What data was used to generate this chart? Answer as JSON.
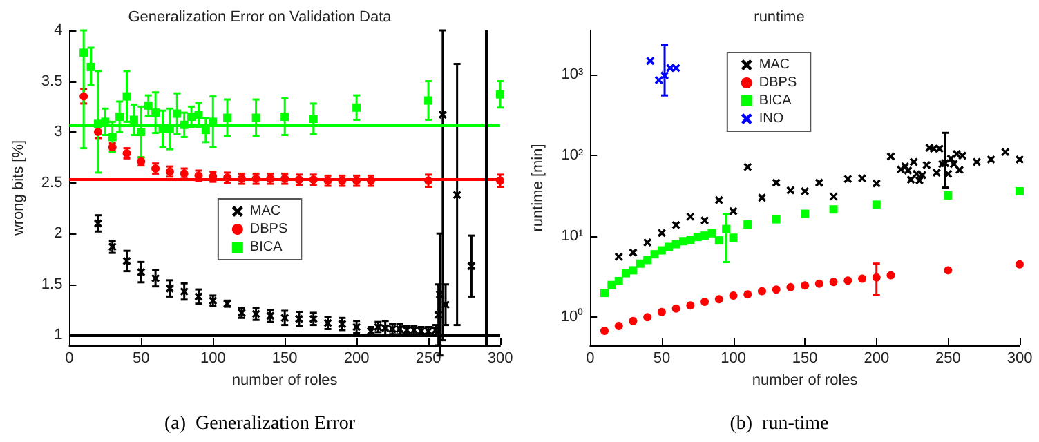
{
  "chart_data": [
    {
      "type": "scatter",
      "title": "Generalization Error on Validation Data",
      "xlabel": "number of roles",
      "ylabel": "wrong bits [%]",
      "annotations": [
        "(a)  Generalization Error"
      ],
      "xlim": [
        0,
        300
      ],
      "xticks": [
        0,
        50,
        100,
        150,
        200,
        250,
        300
      ],
      "ylim": [
        0.9,
        4
      ],
      "yticks": [
        1,
        1.5,
        2,
        2.5,
        3,
        3.5,
        4
      ],
      "grid": false,
      "legend": "center",
      "series": [
        {
          "name": "MAC",
          "color": "#000000",
          "marker": "cross",
          "x": [
            20,
            30,
            40,
            50,
            60,
            70,
            80,
            90,
            100,
            110,
            120,
            130,
            140,
            150,
            160,
            170,
            180,
            190,
            200,
            210,
            215,
            220,
            225,
            230,
            235,
            240,
            245,
            250,
            255,
            257,
            258,
            260,
            262,
            270,
            280
          ],
          "values": [
            2.1,
            1.87,
            1.73,
            1.62,
            1.56,
            1.46,
            1.43,
            1.38,
            1.34,
            1.31,
            1.22,
            1.21,
            1.19,
            1.17,
            1.16,
            1.16,
            1.12,
            1.11,
            1.08,
            1.04,
            1.08,
            1.07,
            1.06,
            1.06,
            1.05,
            1.05,
            1.04,
            1.04,
            1.05,
            1.2,
            1.4,
            3.17,
            1.3,
            2.38,
            1.68
          ],
          "errors": [
            0.08,
            0.06,
            0.1,
            0.1,
            0.08,
            0.08,
            0.08,
            0.07,
            0.05,
            0.03,
            0.05,
            0.06,
            0.06,
            0.07,
            0.07,
            0.06,
            0.06,
            0.06,
            0.06,
            0.04,
            0.05,
            0.07,
            0.05,
            0.05,
            0.04,
            0.04,
            0.04,
            0.04,
            0.05,
            0.3,
            0.6,
            [
              0.95,
              4
            ],
            0.2,
            [
              1.1,
              3.67
            ],
            0.3
          ]
        },
        {
          "name": "DBPS",
          "color": "#ff0000",
          "marker": "circle",
          "x": [
            10,
            20,
            30,
            40,
            50,
            60,
            70,
            80,
            90,
            100,
            110,
            120,
            130,
            140,
            150,
            160,
            170,
            180,
            190,
            200,
            210,
            250,
            300
          ],
          "values": [
            3.35,
            3.0,
            2.85,
            2.79,
            2.71,
            2.64,
            2.61,
            2.59,
            2.57,
            2.56,
            2.55,
            2.54,
            2.54,
            2.54,
            2.54,
            2.53,
            2.53,
            2.52,
            2.52,
            2.52,
            2.52,
            2.52,
            2.52
          ],
          "errors": [
            0.07,
            0.06,
            0.04,
            0.05,
            0.04,
            0.05,
            0.05,
            0.05,
            0.05,
            0.05,
            0.05,
            0.05,
            0.05,
            0.05,
            0.05,
            0.05,
            0.05,
            0.05,
            0.05,
            0.05,
            0.05,
            0.06,
            0.06
          ]
        },
        {
          "name": "BICA",
          "color": "#00ff00",
          "marker": "square",
          "x": [
            10,
            15,
            20,
            25,
            30,
            35,
            40,
            45,
            50,
            55,
            60,
            65,
            70,
            75,
            80,
            85,
            90,
            95,
            100,
            110,
            130,
            150,
            170,
            200,
            250,
            300
          ],
          "values": [
            3.78,
            3.64,
            3.08,
            3.1,
            2.95,
            3.15,
            3.35,
            3.12,
            3.0,
            3.26,
            3.19,
            3.03,
            3.03,
            3.18,
            3.07,
            3.15,
            3.17,
            3.02,
            3.1,
            3.14,
            3.14,
            3.15,
            3.13,
            3.24,
            3.31,
            3.37
          ],
          "errors": [
            [
              2.84,
              4
            ],
            [
              3.46,
              3.83
            ],
            [
              2.6,
              3.6
            ],
            0.13,
            0.15,
            0.15,
            0.25,
            0.15,
            0.25,
            0.1,
            0.2,
            0.18,
            0.2,
            0.2,
            0.12,
            0.1,
            0.12,
            0.12,
            0.25,
            0.18,
            0.18,
            0.18,
            0.15,
            0.12,
            0.19,
            0.13
          ]
        }
      ],
      "ref_lines": [
        {
          "axis": "y",
          "value": 1,
          "color": "#000000"
        },
        {
          "axis": "y",
          "value": 2.54,
          "color": "#ff0000"
        },
        {
          "axis": "y",
          "value": 3.06,
          "color": "#00ff00"
        },
        {
          "axis": "x",
          "value": 290,
          "color": "#000000"
        }
      ]
    },
    {
      "type": "scatter",
      "title": "runtime",
      "xlabel": "number of roles",
      "ylabel": "runtime [min]",
      "annotations": [
        "(b)  run-time"
      ],
      "log": "y",
      "xlim": [
        0,
        300
      ],
      "xticks": [
        0,
        50,
        100,
        150,
        200,
        250,
        300
      ],
      "ylim": [
        0.45,
        3500
      ],
      "yticks": [
        {
          "value": 1,
          "label": "10⁰"
        },
        {
          "value": 10,
          "label": "10¹"
        },
        {
          "value": 100,
          "label": "10²"
        },
        {
          "value": 1000,
          "label": "10³"
        }
      ],
      "grid": false,
      "legend": "top center",
      "series": [
        {
          "name": "MAC",
          "color": "#000000",
          "marker": "cross",
          "x": [
            20,
            30,
            40,
            50,
            60,
            70,
            80,
            90,
            100,
            110,
            120,
            130,
            140,
            150,
            160,
            170,
            180,
            190,
            200,
            210,
            217,
            220,
            222,
            224,
            226,
            228,
            230,
            232,
            235,
            237,
            240,
            242,
            244,
            246,
            248,
            250,
            252,
            254,
            256,
            258,
            260,
            270,
            280,
            290,
            300
          ],
          "values": [
            5.6,
            6.3,
            8.4,
            11,
            13.8,
            17.5,
            15.7,
            28,
            20.4,
            72,
            30,
            46,
            37,
            36,
            46,
            31,
            51,
            52,
            45,
            97,
            67,
            73,
            65,
            50,
            83,
            59,
            49,
            57,
            76,
            124,
            121,
            61,
            121,
            78,
            80,
            59,
            91,
            78,
            104,
            66,
            99,
            83,
            89,
            110,
            89
          ],
          "errors": [
            null,
            null,
            null,
            null,
            null,
            null,
            null,
            null,
            null,
            null,
            null,
            null,
            null,
            null,
            null,
            null,
            null,
            null,
            null,
            null,
            null,
            null,
            null,
            null,
            null,
            null,
            null,
            null,
            null,
            null,
            null,
            null,
            null,
            null,
            [
              40,
              190
            ],
            null,
            null,
            null,
            null,
            null,
            null,
            null,
            null,
            null,
            null
          ]
        },
        {
          "name": "DBPS",
          "color": "#ff0000",
          "marker": "circle",
          "x": [
            10,
            20,
            30,
            40,
            50,
            60,
            70,
            80,
            90,
            100,
            110,
            120,
            130,
            140,
            150,
            160,
            170,
            180,
            190,
            200,
            210,
            250,
            300
          ],
          "values": [
            0.68,
            0.78,
            0.9,
            1.0,
            1.16,
            1.28,
            1.4,
            1.55,
            1.67,
            1.85,
            1.92,
            2.1,
            2.2,
            2.35,
            2.47,
            2.6,
            2.73,
            2.84,
            3.0,
            3.1,
            3.3,
            3.8,
            4.5
          ],
          "errors": [
            null,
            null,
            null,
            null,
            null,
            null,
            null,
            null,
            null,
            null,
            null,
            null,
            null,
            null,
            null,
            null,
            null,
            null,
            null,
            [
              1.9,
              4.6
            ],
            null,
            null,
            null
          ]
        },
        {
          "name": "BICA",
          "color": "#00ff00",
          "marker": "square",
          "x": [
            10,
            15,
            20,
            25,
            30,
            35,
            40,
            45,
            50,
            55,
            60,
            65,
            70,
            75,
            80,
            85,
            90,
            95,
            100,
            110,
            130,
            150,
            170,
            200,
            250,
            300
          ],
          "values": [
            2.0,
            2.5,
            2.8,
            3.5,
            3.8,
            4.6,
            5.1,
            6.0,
            6.7,
            7.4,
            8.0,
            8.7,
            9.1,
            9.8,
            10.2,
            10.9,
            8.9,
            12.3,
            9.6,
            14,
            16.2,
            19,
            21.5,
            24.6,
            32,
            36
          ],
          "errors": [
            null,
            null,
            null,
            null,
            null,
            null,
            null,
            null,
            null,
            null,
            null,
            null,
            null,
            null,
            null,
            null,
            null,
            [
              4.8,
              19
            ],
            null,
            null,
            null,
            null,
            null,
            null,
            null,
            null
          ]
        },
        {
          "name": "INO",
          "color": "#0000ff",
          "marker": "cross",
          "x": [
            42,
            48,
            52,
            56,
            60
          ],
          "values": [
            1470,
            850,
            970,
            1200,
            1200
          ],
          "errors": [
            null,
            null,
            [
              550,
              2300
            ],
            null,
            null
          ]
        }
      ]
    }
  ]
}
